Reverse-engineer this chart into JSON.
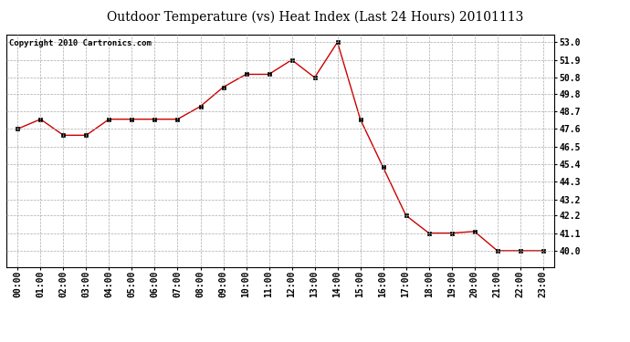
{
  "title": "Outdoor Temperature (vs) Heat Index (Last 24 Hours) 20101113",
  "copyright": "Copyright 2010 Cartronics.com",
  "x_labels": [
    "00:00",
    "01:00",
    "02:00",
    "03:00",
    "04:00",
    "05:00",
    "06:00",
    "07:00",
    "08:00",
    "09:00",
    "10:00",
    "11:00",
    "12:00",
    "13:00",
    "14:00",
    "15:00",
    "16:00",
    "17:00",
    "18:00",
    "19:00",
    "20:00",
    "21:00",
    "22:00",
    "23:00"
  ],
  "y_values": [
    47.6,
    48.2,
    47.2,
    47.2,
    48.2,
    48.2,
    48.2,
    48.2,
    49.0,
    50.2,
    51.0,
    51.0,
    51.9,
    50.8,
    53.0,
    48.2,
    45.2,
    42.2,
    41.1,
    41.1,
    41.2,
    40.0,
    40.0,
    40.0
  ],
  "line_color": "#cc0000",
  "marker_color": "#000000",
  "bg_color": "#ffffff",
  "grid_color": "#aaaaaa",
  "title_fontsize": 10,
  "copyright_fontsize": 6.5,
  "tick_fontsize": 7,
  "y_min": 39.0,
  "y_max": 53.5,
  "y_ticks": [
    40.0,
    41.1,
    42.2,
    43.2,
    44.3,
    45.4,
    46.5,
    47.6,
    48.7,
    49.8,
    50.8,
    51.9,
    53.0
  ]
}
